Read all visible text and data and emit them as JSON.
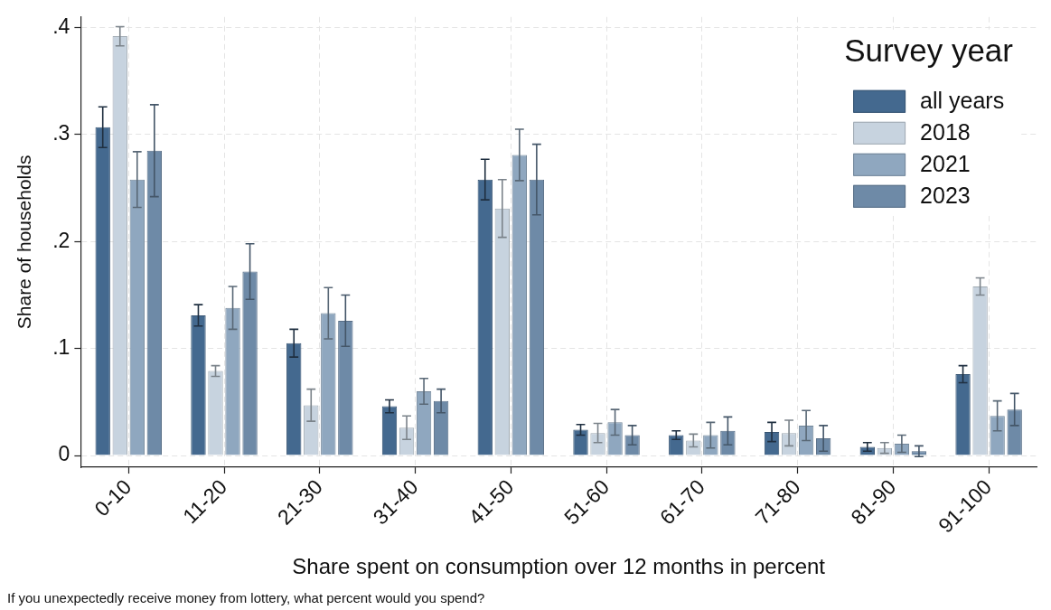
{
  "chart_data": {
    "type": "bar",
    "xlabel": "Share spent on consumption over 12 months in percent",
    "ylabel": "Share of households",
    "legend_title": "Survey year",
    "annotations": [
      "If you unexpectedly receive money from lottery, what percent would you spend?"
    ],
    "categories": [
      "0-10",
      "11-20",
      "21-30",
      "31-40",
      "41-50",
      "51-60",
      "61-70",
      "71-80",
      "81-90",
      "91-100"
    ],
    "series": [
      {
        "name": "all years",
        "color": "#44698f",
        "values": [
          0.307,
          0.131,
          0.105,
          0.046,
          0.258,
          0.024,
          0.019,
          0.022,
          0.008,
          0.076
        ],
        "errors": [
          0.019,
          0.01,
          0.013,
          0.006,
          0.019,
          0.005,
          0.004,
          0.009,
          0.004,
          0.008
        ]
      },
      {
        "name": "2018",
        "color": "#c7d3df",
        "values": [
          0.392,
          0.079,
          0.047,
          0.026,
          0.231,
          0.021,
          0.014,
          0.021,
          0.007,
          0.158
        ],
        "errors": [
          0.009,
          0.005,
          0.015,
          0.011,
          0.027,
          0.009,
          0.006,
          0.012,
          0.005,
          0.008
        ]
      },
      {
        "name": "2021",
        "color": "#8fa7bf",
        "values": [
          0.258,
          0.138,
          0.133,
          0.06,
          0.281,
          0.031,
          0.019,
          0.028,
          0.011,
          0.037
        ],
        "errors": [
          0.026,
          0.02,
          0.024,
          0.012,
          0.024,
          0.012,
          0.012,
          0.014,
          0.008,
          0.014
        ]
      },
      {
        "name": "2023",
        "color": "#6e8aa7",
        "values": [
          0.285,
          0.172,
          0.126,
          0.051,
          0.258,
          0.019,
          0.023,
          0.016,
          0.004,
          0.043
        ],
        "errors": [
          0.043,
          0.026,
          0.024,
          0.011,
          0.033,
          0.009,
          0.013,
          0.012,
          0.005,
          0.015
        ]
      }
    ],
    "ylim": [
      -0.011,
      0.41
    ],
    "yticks": [
      0,
      {
        "value": 0.1,
        "label": ".1"
      },
      {
        "value": 0.2,
        "label": ".2"
      },
      {
        "value": 0.3,
        "label": ".3"
      },
      {
        "value": 0.4,
        "label": ".4"
      }
    ],
    "grid": true,
    "legend": "top right"
  }
}
